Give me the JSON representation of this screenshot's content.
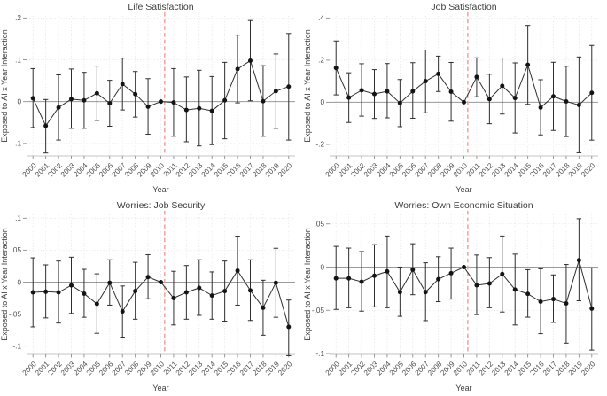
{
  "figure": {
    "y_axis_title": "Exposed to AI x Year Interaction",
    "x_axis_title": "Year",
    "years": [
      2000,
      2001,
      2002,
      2003,
      2004,
      2005,
      2006,
      2007,
      2008,
      2009,
      2010,
      2011,
      2012,
      2013,
      2014,
      2015,
      2016,
      2017,
      2018,
      2019,
      2020
    ],
    "reference_year": 2010,
    "colors": {
      "marker": "#141414",
      "error_bar": "#2e2e2e",
      "connect_line": "#2e2e2e",
      "zero_line": "#9a9a9a",
      "grid_line": "#e0e0e0",
      "axis_line": "#c6c6c6",
      "tick_mark": "#8f8f8f",
      "reference_line": "#f2a29a",
      "background": "#ffffff"
    }
  },
  "chart_data": [
    {
      "type": "line-errorbar",
      "title": "Life Satisfaction",
      "ylim": [
        -0.13,
        0.205
      ],
      "yticks": [
        -0.1,
        0,
        0.1,
        0.2
      ],
      "ytick_labels": [
        "-.1",
        "0",
        ".1",
        ".2"
      ],
      "estimates": [
        0.008,
        -0.058,
        -0.014,
        0.006,
        0.003,
        0.02,
        -0.004,
        0.042,
        0.018,
        -0.012,
        0.0,
        -0.002,
        -0.02,
        -0.016,
        -0.022,
        0.003,
        0.078,
        0.098,
        0.001,
        0.025,
        0.036
      ],
      "ci_low": [
        -0.062,
        -0.123,
        -0.092,
        -0.064,
        -0.064,
        -0.045,
        -0.059,
        -0.02,
        -0.037,
        -0.078,
        null,
        -0.083,
        -0.096,
        -0.106,
        -0.103,
        -0.089,
        -0.003,
        0.002,
        -0.083,
        -0.064,
        -0.092
      ],
      "ci_high": [
        0.079,
        0.005,
        0.064,
        0.078,
        0.07,
        0.085,
        0.051,
        0.104,
        0.072,
        0.055,
        null,
        0.079,
        0.059,
        0.075,
        0.06,
        0.094,
        0.159,
        0.194,
        0.086,
        0.114,
        0.163
      ]
    },
    {
      "type": "line-errorbar",
      "title": "Job Satisfaction",
      "ylim": [
        -0.255,
        0.41
      ],
      "yticks": [
        -0.2,
        0,
        0.2,
        0.4
      ],
      "ytick_labels": [
        "-.2",
        "0",
        ".2",
        ".4"
      ],
      "estimates": [
        0.163,
        0.022,
        0.057,
        0.039,
        0.052,
        -0.004,
        0.052,
        0.1,
        0.135,
        0.05,
        0.0,
        0.12,
        0.015,
        0.078,
        0.02,
        0.178,
        -0.025,
        0.028,
        0.004,
        -0.013,
        0.045
      ],
      "ci_low": [
        0.035,
        -0.096,
        -0.066,
        -0.077,
        -0.074,
        -0.116,
        -0.076,
        -0.05,
        0.051,
        -0.09,
        null,
        0.026,
        -0.102,
        -0.056,
        -0.146,
        -0.01,
        -0.155,
        -0.134,
        -0.163,
        -0.24,
        -0.18
      ],
      "ci_high": [
        0.291,
        0.14,
        0.183,
        0.155,
        0.184,
        0.108,
        0.188,
        0.248,
        0.219,
        0.189,
        null,
        0.211,
        0.133,
        0.21,
        0.187,
        0.365,
        0.107,
        0.19,
        0.171,
        0.215,
        0.27
      ]
    },
    {
      "type": "line-errorbar",
      "title": "Worries: Job Security",
      "ylim": [
        -0.113,
        0.106
      ],
      "yticks": [
        -0.1,
        -0.05,
        0,
        0.05,
        0.1
      ],
      "ytick_labels": [
        "-.1",
        "-.05",
        "0",
        ".05",
        ".1"
      ],
      "estimates": [
        -0.016,
        -0.015,
        -0.016,
        -0.005,
        -0.018,
        -0.034,
        -0.001,
        -0.046,
        -0.014,
        0.008,
        0.0,
        -0.025,
        -0.016,
        -0.009,
        -0.021,
        -0.014,
        0.018,
        -0.013,
        -0.04,
        -0.001,
        -0.07
      ],
      "ci_low": [
        -0.07,
        -0.056,
        -0.064,
        -0.049,
        -0.055,
        -0.08,
        -0.036,
        -0.086,
        -0.058,
        -0.026,
        null,
        -0.067,
        -0.058,
        -0.052,
        -0.058,
        -0.061,
        -0.036,
        -0.06,
        -0.083,
        -0.055,
        -0.115
      ],
      "ci_high": [
        0.038,
        0.027,
        0.033,
        0.039,
        0.02,
        0.013,
        0.035,
        -0.006,
        0.031,
        0.043,
        null,
        0.017,
        0.026,
        0.035,
        0.016,
        0.033,
        0.072,
        0.035,
        0.003,
        0.053,
        -0.028
      ]
    },
    {
      "type": "line-errorbar",
      "title": "Worries: Own Economic Situation",
      "ylim": [
        -0.101,
        0.061
      ],
      "yticks": [
        -0.1,
        -0.05,
        0,
        0.05
      ],
      "ytick_labels": [
        "-.1",
        "-.05",
        "0",
        ".05"
      ],
      "estimates": [
        -0.013,
        -0.013,
        -0.017,
        -0.01,
        -0.005,
        -0.029,
        -0.003,
        -0.029,
        -0.014,
        -0.007,
        0.0,
        -0.021,
        -0.019,
        -0.008,
        -0.026,
        -0.031,
        -0.04,
        -0.037,
        -0.042,
        0.008,
        -0.048
      ],
      "ci_low": [
        -0.049,
        -0.047,
        -0.051,
        -0.046,
        -0.047,
        -0.057,
        -0.032,
        -0.062,
        -0.04,
        -0.037,
        null,
        -0.055,
        -0.047,
        -0.052,
        -0.067,
        -0.058,
        -0.077,
        -0.064,
        -0.088,
        -0.039,
        -0.096
      ],
      "ci_high": [
        0.024,
        0.022,
        0.018,
        0.026,
        0.036,
        0.0,
        0.027,
        0.005,
        0.012,
        0.022,
        null,
        0.014,
        0.011,
        0.036,
        0.015,
        -0.003,
        -0.002,
        -0.009,
        0.003,
        0.056,
        -0.001
      ]
    }
  ]
}
